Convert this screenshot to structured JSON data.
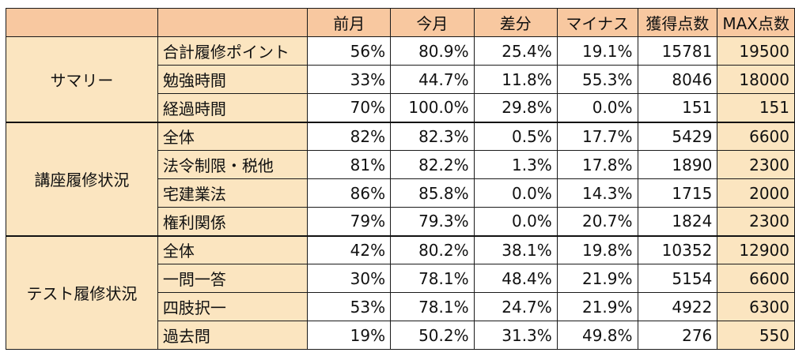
{
  "headers": [
    "",
    "",
    "前月",
    "今月",
    "差分",
    "マイナス",
    "獲得点数",
    "MAX点数"
  ],
  "groups": [
    {
      "label": "サマリー",
      "rows": [
        {
          "name": "合計履修ポイント",
          "prev": "56%",
          "curr": "80.9%",
          "diff": "25.4%",
          "minus": "19.1%",
          "earned": "15781",
          "max": "19500"
        },
        {
          "name": "勉強時間",
          "prev": "33%",
          "curr": "44.7%",
          "diff": "11.8%",
          "minus": "55.3%",
          "earned": "8046",
          "max": "18000",
          "bold_earned": true
        },
        {
          "name": "経過時間",
          "prev": "70%",
          "curr": "100.0%",
          "diff": "29.8%",
          "minus": "0.0%",
          "earned": "151",
          "max": "151"
        }
      ]
    },
    {
      "label": "講座履修状況",
      "rows": [
        {
          "name": "全体",
          "prev": "82%",
          "curr": "82.3%",
          "diff": "0.5%",
          "minus": "17.7%",
          "earned": "5429",
          "max": "6600"
        },
        {
          "name": "法令制限・税他",
          "prev": "81%",
          "curr": "82.2%",
          "diff": "1.3%",
          "minus": "17.8%",
          "earned": "1890",
          "max": "2300"
        },
        {
          "name": "宅建業法",
          "prev": "86%",
          "curr": "85.8%",
          "diff": "0.0%",
          "minus": "14.3%",
          "earned": "1715",
          "max": "2000"
        },
        {
          "name": "権利関係",
          "prev": "79%",
          "curr": "79.3%",
          "diff": "0.0%",
          "minus": "20.7%",
          "earned": "1824",
          "max": "2300"
        }
      ]
    },
    {
      "label": "テスト履修状況",
      "rows": [
        {
          "name": "全体",
          "prev": "42%",
          "curr": "80.2%",
          "diff": "38.1%",
          "minus": "19.8%",
          "earned": "10352",
          "max": "12900"
        },
        {
          "name": "一問一答",
          "prev": "30%",
          "curr": "78.1%",
          "diff": "48.4%",
          "minus": "21.9%",
          "earned": "5154",
          "max": "6600"
        },
        {
          "name": "四肢択一",
          "prev": "53%",
          "curr": "78.1%",
          "diff": "24.7%",
          "minus": "21.9%",
          "earned": "4922",
          "max": "6300"
        },
        {
          "name": "過去問",
          "prev": "19%",
          "curr": "50.2%",
          "diff": "31.3%",
          "minus": "49.8%",
          "earned": "276",
          "max": "550"
        }
      ]
    }
  ],
  "colors": {
    "header_bg": "#f8c8a0",
    "label_bg": "#fbe5c0",
    "cell_bg": "#ffffff",
    "border": "#1a1a1a"
  }
}
